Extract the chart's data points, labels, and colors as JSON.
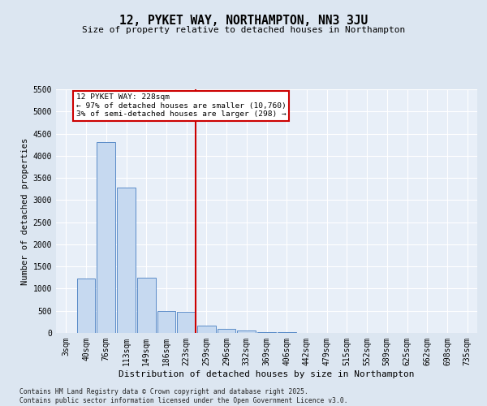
{
  "title": "12, PYKET WAY, NORTHAMPTON, NN3 3JU",
  "subtitle": "Size of property relative to detached houses in Northampton",
  "xlabel": "Distribution of detached houses by size in Northampton",
  "ylabel": "Number of detached properties",
  "bar_labels": [
    "3sqm",
    "40sqm",
    "76sqm",
    "113sqm",
    "149sqm",
    "186sqm",
    "223sqm",
    "259sqm",
    "296sqm",
    "332sqm",
    "369sqm",
    "406sqm",
    "442sqm",
    "479sqm",
    "515sqm",
    "552sqm",
    "589sqm",
    "625sqm",
    "662sqm",
    "698sqm",
    "735sqm"
  ],
  "bar_values": [
    0,
    1220,
    4310,
    3280,
    1250,
    500,
    480,
    160,
    100,
    60,
    20,
    10,
    5,
    5,
    0,
    0,
    0,
    0,
    0,
    0,
    0
  ],
  "bar_color": "#c6d9f0",
  "bar_edge_color": "#5b8cc8",
  "vline_x_index": 6,
  "vline_color": "#cc0000",
  "annotation_line1": "12 PYKET WAY: 228sqm",
  "annotation_line2": "← 97% of detached houses are smaller (10,760)",
  "annotation_line3": "3% of semi-detached houses are larger (298) →",
  "annotation_box_color": "#cc0000",
  "ylim": [
    0,
    5500
  ],
  "yticks": [
    0,
    500,
    1000,
    1500,
    2000,
    2500,
    3000,
    3500,
    4000,
    4500,
    5000,
    5500
  ],
  "footer_line1": "Contains HM Land Registry data © Crown copyright and database right 2025.",
  "footer_line2": "Contains public sector information licensed under the Open Government Licence v3.0.",
  "bg_color": "#dce6f1",
  "plot_bg_color": "#e8eff8",
  "grid_color": "#ffffff",
  "title_fontsize": 10.5,
  "subtitle_fontsize": 8,
  "tick_fontsize": 7,
  "ylabel_fontsize": 7.5,
  "xlabel_fontsize": 8,
  "footer_fontsize": 5.8
}
